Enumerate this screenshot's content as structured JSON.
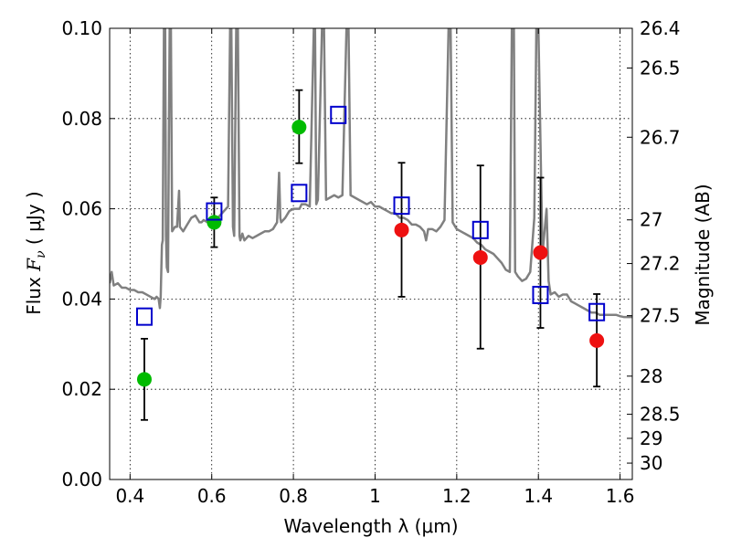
{
  "chart_data": {
    "type": "scatter",
    "xlabel": "Wavelength  λ (μm)",
    "ylabel": "Flux  F_ν  ( μJy )",
    "ylabel_parts": {
      "pre": "Flux ",
      "var": "F",
      "sub": "ν",
      "open": " ( ",
      "unit": "μJy",
      "close": " )"
    },
    "y2label": "Magnitude (AB)",
    "xlim": [
      0.35,
      1.63
    ],
    "ylim": [
      0.0,
      0.1
    ],
    "grid": true,
    "x_ticks": [
      {
        "value": 0.4,
        "label": "0.4"
      },
      {
        "value": 0.6,
        "label": "0.6"
      },
      {
        "value": 0.8,
        "label": "0.8"
      },
      {
        "value": 1.0,
        "label": "1"
      },
      {
        "value": 1.2,
        "label": "1.2"
      },
      {
        "value": 1.4,
        "label": "1.4"
      },
      {
        "value": 1.6,
        "label": "1.6"
      }
    ],
    "y_ticks": [
      {
        "value": 0.0,
        "label": "0.00"
      },
      {
        "value": 0.02,
        "label": "0.02"
      },
      {
        "value": 0.04,
        "label": "0.04"
      },
      {
        "value": 0.06,
        "label": "0.06"
      },
      {
        "value": 0.08,
        "label": "0.08"
      },
      {
        "value": 0.1,
        "label": "0.10"
      }
    ],
    "mag_ticks": [
      {
        "mag": 26.4,
        "label": "26.4"
      },
      {
        "mag": 26.5,
        "label": "26.5"
      },
      {
        "mag": 26.7,
        "label": "26.7"
      },
      {
        "mag": 27,
        "label": "27"
      },
      {
        "mag": 27.2,
        "label": "27.2"
      },
      {
        "mag": 27.5,
        "label": "27.5"
      },
      {
        "mag": 28,
        "label": "28"
      },
      {
        "mag": 28.5,
        "label": "28.5"
      },
      {
        "mag": 29,
        "label": "29"
      },
      {
        "mag": 30,
        "label": "30"
      }
    ],
    "colors": {
      "spectrum": "#808080",
      "green_points": "#00bb00",
      "red_points": "#ee1111",
      "model_squares": "#0000cc",
      "error_bars": "#000000"
    },
    "series": [
      {
        "type": "line",
        "points": [
          [
            0.35,
            0.0435
          ],
          [
            0.355,
            0.046
          ],
          [
            0.36,
            0.043
          ],
          [
            0.37,
            0.0435
          ],
          [
            0.38,
            0.0425
          ],
          [
            0.39,
            0.0425
          ],
          [
            0.4,
            0.042
          ],
          [
            0.41,
            0.042
          ],
          [
            0.42,
            0.0415
          ],
          [
            0.43,
            0.0415
          ],
          [
            0.44,
            0.041
          ],
          [
            0.45,
            0.0405
          ],
          [
            0.46,
            0.04
          ],
          [
            0.465,
            0.0405
          ],
          [
            0.47,
            0.04
          ],
          [
            0.473,
            0.038
          ],
          [
            0.475,
            0.0405
          ],
          [
            0.478,
            0.052
          ],
          [
            0.48,
            0.053
          ],
          [
            0.483,
            0.1
          ],
          [
            0.486,
            0.1
          ],
          [
            0.488,
            0.054
          ],
          [
            0.49,
            0.047
          ],
          [
            0.493,
            0.046
          ],
          [
            0.495,
            0.076
          ],
          [
            0.497,
            0.1
          ],
          [
            0.5,
            0.1
          ],
          [
            0.503,
            0.055
          ],
          [
            0.51,
            0.056
          ],
          [
            0.515,
            0.056
          ],
          [
            0.52,
            0.064
          ],
          [
            0.522,
            0.056
          ],
          [
            0.53,
            0.055
          ],
          [
            0.54,
            0.0565
          ],
          [
            0.55,
            0.058
          ],
          [
            0.56,
            0.0585
          ],
          [
            0.57,
            0.057
          ],
          [
            0.575,
            0.057
          ],
          [
            0.58,
            0.0575
          ],
          [
            0.59,
            0.057
          ],
          [
            0.6,
            0.0575
          ],
          [
            0.61,
            0.058
          ],
          [
            0.615,
            0.058
          ],
          [
            0.62,
            0.0585
          ],
          [
            0.63,
            0.0595
          ],
          [
            0.64,
            0.0605
          ],
          [
            0.645,
            0.1
          ],
          [
            0.648,
            0.1
          ],
          [
            0.652,
            0.056
          ],
          [
            0.655,
            0.054
          ],
          [
            0.66,
            0.1
          ],
          [
            0.664,
            0.1
          ],
          [
            0.668,
            0.054
          ],
          [
            0.67,
            0.053
          ],
          [
            0.675,
            0.0545
          ],
          [
            0.68,
            0.053
          ],
          [
            0.69,
            0.054
          ],
          [
            0.7,
            0.0535
          ],
          [
            0.71,
            0.054
          ],
          [
            0.72,
            0.0545
          ],
          [
            0.73,
            0.055
          ],
          [
            0.74,
            0.055
          ],
          [
            0.75,
            0.0555
          ],
          [
            0.76,
            0.057
          ],
          [
            0.765,
            0.068
          ],
          [
            0.768,
            0.058
          ],
          [
            0.77,
            0.057
          ],
          [
            0.78,
            0.058
          ],
          [
            0.79,
            0.0595
          ],
          [
            0.8,
            0.06
          ],
          [
            0.81,
            0.06
          ],
          [
            0.815,
            0.06
          ],
          [
            0.82,
            0.061
          ],
          [
            0.83,
            0.061
          ],
          [
            0.84,
            0.0605
          ],
          [
            0.85,
            0.1
          ],
          [
            0.853,
            0.1
          ],
          [
            0.856,
            0.061
          ],
          [
            0.86,
            0.062
          ],
          [
            0.87,
            0.1
          ],
          [
            0.875,
            0.1
          ],
          [
            0.88,
            0.062
          ],
          [
            0.89,
            0.0625
          ],
          [
            0.9,
            0.063
          ],
          [
            0.91,
            0.0625
          ],
          [
            0.92,
            0.063
          ],
          [
            0.93,
            0.1
          ],
          [
            0.935,
            0.1
          ],
          [
            0.94,
            0.063
          ],
          [
            0.95,
            0.0625
          ],
          [
            0.96,
            0.062
          ],
          [
            0.97,
            0.0615
          ],
          [
            0.98,
            0.061
          ],
          [
            0.99,
            0.0615
          ],
          [
            1.0,
            0.0605
          ],
          [
            1.01,
            0.0605
          ],
          [
            1.02,
            0.06
          ],
          [
            1.03,
            0.0595
          ],
          [
            1.04,
            0.059
          ],
          [
            1.05,
            0.059
          ],
          [
            1.06,
            0.058
          ],
          [
            1.07,
            0.058
          ],
          [
            1.08,
            0.0575
          ],
          [
            1.09,
            0.0565
          ],
          [
            1.1,
            0.0565
          ],
          [
            1.11,
            0.056
          ],
          [
            1.12,
            0.055
          ],
          [
            1.125,
            0.053
          ],
          [
            1.13,
            0.0555
          ],
          [
            1.14,
            0.0555
          ],
          [
            1.15,
            0.055
          ],
          [
            1.16,
            0.056
          ],
          [
            1.17,
            0.0575
          ],
          [
            1.18,
            0.1
          ],
          [
            1.185,
            0.1
          ],
          [
            1.19,
            0.057
          ],
          [
            1.2,
            0.0555
          ],
          [
            1.21,
            0.055
          ],
          [
            1.22,
            0.0545
          ],
          [
            1.23,
            0.054
          ],
          [
            1.24,
            0.0535
          ],
          [
            1.25,
            0.0525
          ],
          [
            1.26,
            0.052
          ],
          [
            1.27,
            0.051
          ],
          [
            1.28,
            0.0505
          ],
          [
            1.29,
            0.05
          ],
          [
            1.3,
            0.049
          ],
          [
            1.31,
            0.048
          ],
          [
            1.32,
            0.0465
          ],
          [
            1.33,
            0.046
          ],
          [
            1.335,
            0.1
          ],
          [
            1.34,
            0.1
          ],
          [
            1.343,
            0.046
          ],
          [
            1.35,
            0.045
          ],
          [
            1.36,
            0.044
          ],
          [
            1.37,
            0.0445
          ],
          [
            1.38,
            0.046
          ],
          [
            1.39,
            0.058
          ],
          [
            1.395,
            0.1
          ],
          [
            1.4,
            0.1
          ],
          [
            1.41,
            0.05
          ],
          [
            1.42,
            0.06
          ],
          [
            1.425,
            0.044
          ],
          [
            1.43,
            0.041
          ],
          [
            1.44,
            0.0415
          ],
          [
            1.45,
            0.0405
          ],
          [
            1.46,
            0.041
          ],
          [
            1.47,
            0.041
          ],
          [
            1.48,
            0.0395
          ],
          [
            1.49,
            0.039
          ],
          [
            1.5,
            0.0385
          ],
          [
            1.51,
            0.038
          ],
          [
            1.52,
            0.0375
          ],
          [
            1.53,
            0.037
          ],
          [
            1.54,
            0.037
          ],
          [
            1.55,
            0.0365
          ],
          [
            1.56,
            0.0365
          ],
          [
            1.57,
            0.0365
          ],
          [
            1.58,
            0.0365
          ],
          [
            1.59,
            0.0365
          ],
          [
            1.6,
            0.0362
          ],
          [
            1.61,
            0.036
          ],
          [
            1.62,
            0.036
          ],
          [
            1.63,
            0.036
          ]
        ]
      },
      {
        "type": "scatter",
        "marker": "circle",
        "color": "green",
        "points": [
          {
            "x": 0.435,
            "y": 0.0222,
            "err_low": 0.0132,
            "err_high": 0.0312
          },
          {
            "x": 0.606,
            "y": 0.057,
            "err_low": 0.0515,
            "err_high": 0.0625
          },
          {
            "x": 0.814,
            "y": 0.0781,
            "err_low": 0.0701,
            "err_high": 0.0863
          }
        ]
      },
      {
        "type": "scatter",
        "marker": "circle",
        "color": "red",
        "points": [
          {
            "x": 1.065,
            "y": 0.0553,
            "err_low": 0.0405,
            "err_high": 0.0702
          },
          {
            "x": 1.258,
            "y": 0.0492,
            "err_low": 0.029,
            "err_high": 0.0696
          },
          {
            "x": 1.405,
            "y": 0.0503,
            "err_low": 0.0336,
            "err_high": 0.0669
          },
          {
            "x": 1.543,
            "y": 0.0308,
            "err_low": 0.0206,
            "err_high": 0.0411
          }
        ]
      },
      {
        "type": "scatter",
        "marker": "open-square",
        "color": "blue",
        "points": [
          {
            "x": 0.435,
            "y": 0.0361
          },
          {
            "x": 0.606,
            "y": 0.0594
          },
          {
            "x": 0.814,
            "y": 0.0635
          },
          {
            "x": 0.91,
            "y": 0.0808
          },
          {
            "x": 1.065,
            "y": 0.0607
          },
          {
            "x": 1.258,
            "y": 0.0553
          },
          {
            "x": 1.405,
            "y": 0.0409
          },
          {
            "x": 1.543,
            "y": 0.0371
          }
        ]
      }
    ]
  }
}
